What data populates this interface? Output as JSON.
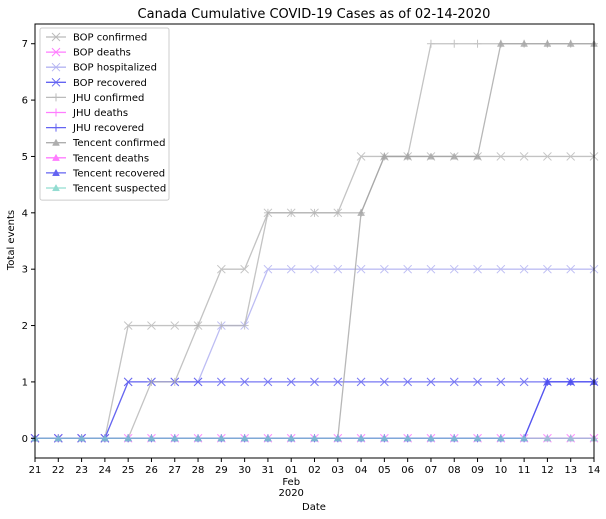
{
  "chart_data": {
    "type": "line",
    "title": "Canada Cumulative COVID-19 Cases as of 02-14-2020",
    "xlabel": "Date",
    "ylabel": "Total events",
    "x": [
      "2020-01-21",
      "2020-01-22",
      "2020-01-23",
      "2020-01-24",
      "2020-01-25",
      "2020-01-26",
      "2020-01-27",
      "2020-01-28",
      "2020-01-29",
      "2020-01-30",
      "2020-01-31",
      "2020-02-01",
      "2020-02-02",
      "2020-02-03",
      "2020-02-04",
      "2020-02-05",
      "2020-02-06",
      "2020-02-07",
      "2020-02-08",
      "2020-02-09",
      "2020-02-10",
      "2020-02-11",
      "2020-02-12",
      "2020-02-13",
      "2020-02-14"
    ],
    "x_tick_labels": [
      "21",
      "22",
      "23",
      "24",
      "25",
      "26",
      "27",
      "28",
      "29",
      "30",
      "31",
      "01",
      "02",
      "03",
      "04",
      "05",
      "06",
      "07",
      "08",
      "09",
      "10",
      "11",
      "12",
      "13",
      "14"
    ],
    "x_month_label": "Feb",
    "x_year_label": "2020",
    "ylim": [
      -0.35,
      7.35
    ],
    "y_ticks": [
      0,
      1,
      2,
      3,
      4,
      5,
      6,
      7
    ],
    "grid": false,
    "legend_position": "top-left",
    "series": [
      {
        "name": "BOP confirmed",
        "color": "#b0b0b0",
        "marker": "x",
        "values": [
          0,
          0,
          0,
          0,
          2,
          2,
          2,
          2,
          3,
          3,
          4,
          4,
          4,
          4,
          5,
          5,
          5,
          5,
          5,
          5,
          5,
          5,
          5,
          5,
          5
        ]
      },
      {
        "name": "BOP deaths",
        "color": "#ff66ff",
        "marker": "x",
        "values": [
          0,
          0,
          0,
          0,
          0,
          0,
          0,
          0,
          0,
          0,
          0,
          0,
          0,
          0,
          0,
          0,
          0,
          0,
          0,
          0,
          0,
          0,
          0,
          0,
          0
        ]
      },
      {
        "name": "BOP hospitalized",
        "color": "#a8a8f0",
        "marker": "x",
        "values": [
          0,
          0,
          0,
          0,
          1,
          1,
          1,
          1,
          2,
          2,
          3,
          3,
          3,
          3,
          3,
          3,
          3,
          3,
          3,
          3,
          3,
          3,
          3,
          3,
          3
        ]
      },
      {
        "name": "BOP recovered",
        "color": "#4a4af0",
        "marker": "x",
        "values": [
          0,
          0,
          0,
          0,
          1,
          1,
          1,
          1,
          1,
          1,
          1,
          1,
          1,
          1,
          1,
          1,
          1,
          1,
          1,
          1,
          1,
          1,
          1,
          1,
          1
        ]
      },
      {
        "name": "JHU confirmed",
        "color": "#b0b0b0",
        "marker": "+",
        "values": [
          0,
          0,
          0,
          0,
          0,
          1,
          1,
          2,
          2,
          2,
          4,
          4,
          4,
          4,
          4,
          5,
          5,
          7,
          7,
          7,
          7,
          7,
          7,
          7,
          7
        ]
      },
      {
        "name": "JHU deaths",
        "color": "#ff66ff",
        "marker": "+",
        "values": [
          0,
          0,
          0,
          0,
          0,
          0,
          0,
          0,
          0,
          0,
          0,
          0,
          0,
          0,
          0,
          0,
          0,
          0,
          0,
          0,
          0,
          0,
          0,
          0,
          0
        ]
      },
      {
        "name": "JHU recovered",
        "color": "#4a4af0",
        "marker": "+",
        "values": [
          0,
          0,
          0,
          0,
          0,
          0,
          0,
          0,
          0,
          0,
          0,
          0,
          0,
          0,
          0,
          0,
          0,
          0,
          0,
          0,
          0,
          0,
          1,
          1,
          1
        ]
      },
      {
        "name": "Tencent confirmed",
        "color": "#a0a0a0",
        "marker": "^",
        "values": [
          0,
          0,
          0,
          0,
          0,
          0,
          0,
          0,
          0,
          0,
          0,
          0,
          0,
          0,
          4,
          5,
          5,
          5,
          5,
          5,
          7,
          7,
          7,
          7,
          7
        ]
      },
      {
        "name": "Tencent deaths",
        "color": "#ff66ff",
        "marker": "^",
        "values": [
          0,
          0,
          0,
          0,
          0,
          0,
          0,
          0,
          0,
          0,
          0,
          0,
          0,
          0,
          0,
          0,
          0,
          0,
          0,
          0,
          0,
          0,
          0,
          0,
          0
        ]
      },
      {
        "name": "Tencent recovered",
        "color": "#4a4af0",
        "marker": "^",
        "values": [
          0,
          0,
          0,
          0,
          0,
          0,
          0,
          0,
          0,
          0,
          0,
          0,
          0,
          0,
          0,
          0,
          0,
          0,
          0,
          0,
          0,
          0,
          1,
          1,
          1
        ]
      },
      {
        "name": "Tencent suspected",
        "color": "#7fd6c9",
        "marker": "^",
        "values": [
          0,
          0,
          0,
          0,
          0,
          0,
          0,
          0,
          0,
          0,
          0,
          0,
          0,
          0,
          0,
          0,
          0,
          0,
          0,
          0,
          0,
          0,
          0,
          0,
          0
        ]
      }
    ]
  }
}
